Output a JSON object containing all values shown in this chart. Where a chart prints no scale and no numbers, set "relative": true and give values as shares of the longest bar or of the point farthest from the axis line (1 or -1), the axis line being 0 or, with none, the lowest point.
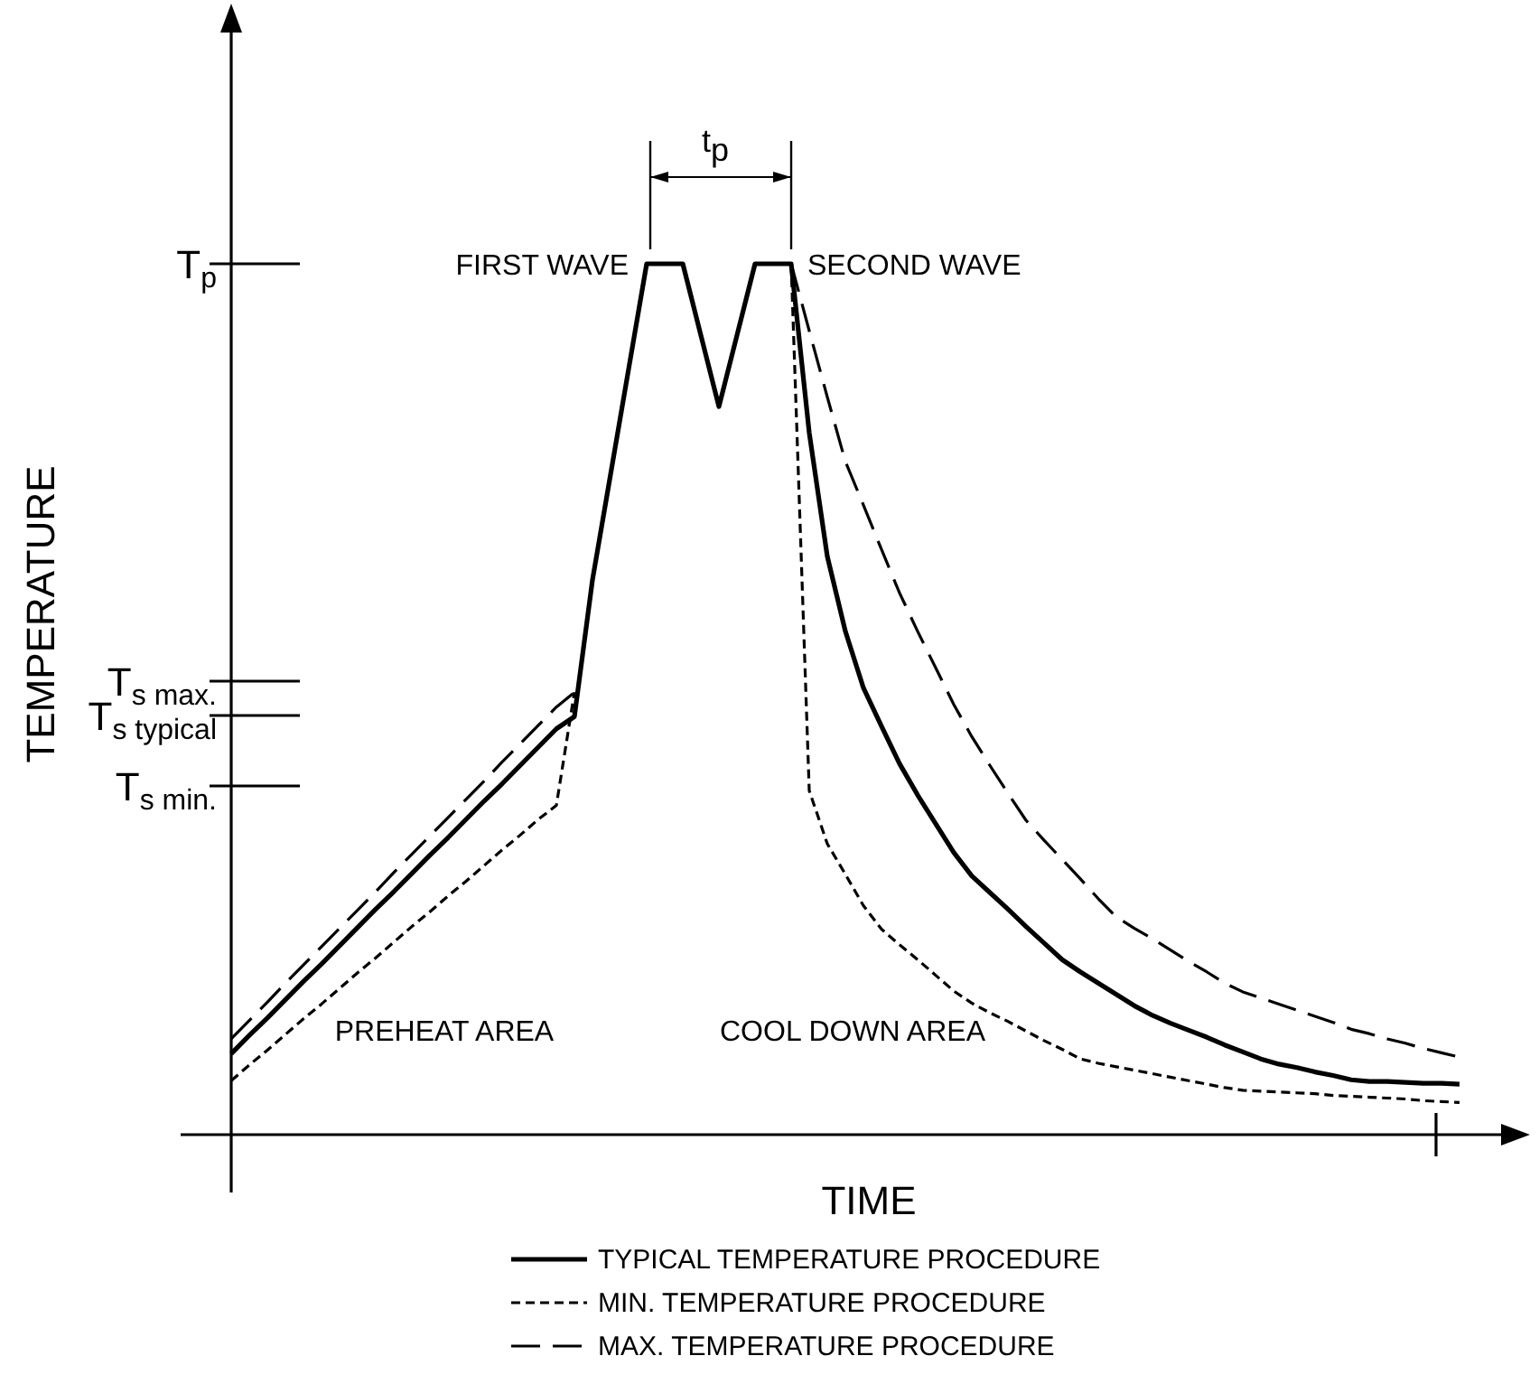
{
  "chart_data": {
    "type": "line",
    "relative": true,
    "xlabel": "TIME",
    "ylabel": "TEMPERATURE",
    "categories": [
      null,
      null,
      null,
      null,
      null,
      null,
      null,
      null,
      null,
      null,
      null,
      null,
      null,
      null,
      null,
      null,
      null,
      null,
      null,
      null,
      null,
      null,
      null,
      null,
      null,
      null,
      null,
      null,
      null,
      null,
      null,
      null,
      null,
      null,
      null,
      null,
      null,
      null,
      null,
      null,
      null,
      null,
      null,
      null,
      null,
      null,
      null,
      null,
      null,
      null,
      null,
      null,
      null,
      null,
      null,
      null,
      null,
      null,
      null,
      null,
      null,
      null,
      null,
      null,
      null,
      null,
      null,
      null,
      null
    ],
    "legend": "bottom",
    "annotations": [
      "FIRST WAVE",
      "SECOND WAVE",
      "PREHEAT AREA",
      "COOL DOWN AREA",
      "t$_{p}$",
      "T$_{p}$",
      "T$_{s max.}$",
      "T$_{s typical}$",
      "T$_{s min.}$"
    ],
    "series": [
      {
        "name": "TYPICAL TEMPERATURE PROCEDURE",
        "color": "#000000",
        "line_style": "solid",
        "values": [
          0.093,
          0.114,
          0.134,
          0.155,
          0.176,
          0.196,
          0.217,
          0.238,
          0.259,
          0.279,
          0.3,
          0.321,
          0.341,
          0.362,
          0.383,
          0.403,
          0.424,
          0.445,
          0.466,
          0.48,
          0.637,
          0.758,
          0.879,
          1,
          1,
          1,
          0.918,
          0.836,
          0.918,
          1,
          1,
          1,
          0.806,
          0.664,
          0.578,
          0.513,
          0.469,
          0.426,
          0.39,
          0.357,
          0.324,
          0.297,
          0.278,
          0.259,
          0.239,
          0.22,
          0.201,
          0.187,
          0.174,
          0.161,
          0.148,
          0.137,
          0.128,
          0.12,
          0.112,
          0.103,
          0.095,
          0.087,
          0.081,
          0.077,
          0.072,
          0.068,
          0.063,
          0.061,
          0.061,
          0.06,
          0.059,
          0.059,
          0.058
        ]
      },
      {
        "name": "MIN. TEMPERATURE PROCEDURE",
        "color": "#000000",
        "line_style": "dotted",
        "values": [
          0.062,
          0.08,
          0.097,
          0.115,
          0.133,
          0.15,
          0.168,
          0.186,
          0.203,
          0.221,
          0.239,
          0.256,
          0.274,
          0.291,
          0.309,
          0.327,
          0.344,
          0.362,
          0.378,
          0.508,
          null,
          null,
          null,
          null,
          null,
          null,
          null,
          null,
          null,
          null,
          null,
          1,
          0.395,
          0.334,
          0.299,
          0.263,
          0.236,
          0.218,
          0.201,
          0.183,
          0.165,
          0.151,
          0.14,
          0.13,
          0.119,
          0.108,
          0.098,
          0.087,
          0.082,
          0.078,
          0.074,
          0.07,
          0.066,
          0.062,
          0.058,
          0.054,
          0.051,
          0.05,
          0.049,
          0.048,
          0.047,
          0.045,
          0.044,
          0.043,
          0.042,
          0.041,
          0.039,
          0.038,
          0.037
        ]
      },
      {
        "name": "MAX. TEMPERATURE PROCEDURE",
        "color": "#000000",
        "line_style": "dashed",
        "values": [
          0.11,
          0.131,
          0.152,
          0.174,
          0.195,
          0.216,
          0.237,
          0.258,
          0.279,
          0.301,
          0.322,
          0.343,
          0.364,
          0.385,
          0.406,
          0.428,
          0.449,
          0.47,
          0.491,
          0.508,
          null,
          null,
          null,
          null,
          null,
          null,
          null,
          null,
          null,
          null,
          null,
          1,
          0.923,
          0.847,
          0.773,
          0.723,
          0.672,
          0.622,
          0.578,
          0.536,
          0.494,
          0.457,
          0.424,
          0.392,
          0.361,
          0.338,
          0.316,
          0.294,
          0.271,
          0.25,
          0.237,
          0.225,
          0.212,
          0.199,
          0.187,
          0.174,
          0.164,
          0.157,
          0.15,
          0.143,
          0.136,
          0.129,
          0.121,
          0.116,
          0.11,
          0.105,
          0.099,
          0.094,
          0.089
        ]
      }
    ]
  }
}
